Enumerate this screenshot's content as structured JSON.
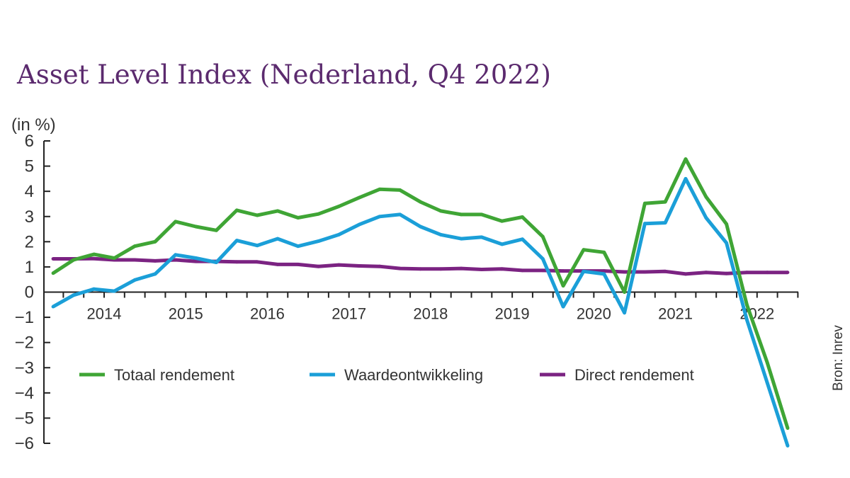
{
  "chart_data": {
    "type": "line",
    "title": "Asset Level Index (Nederland, Q4 2022)",
    "ylabel": "(in %)",
    "source": "Bron: Inrev",
    "ylim": [
      -6,
      6
    ],
    "yticks": [
      6,
      5,
      4,
      3,
      2,
      1,
      0,
      -1,
      -2,
      -3,
      -4,
      -5,
      -6
    ],
    "ytick_labels": [
      "6",
      "5",
      "4",
      "3",
      "2",
      "1",
      "0",
      "−1",
      "−2",
      "−3",
      "−4",
      "−5",
      "−6"
    ],
    "year_labels": [
      "2014",
      "2015",
      "2016",
      "2017",
      "2018",
      "2019",
      "2020",
      "2021",
      "2022"
    ],
    "x": [
      "Q4 2013",
      "Q1 2014",
      "Q2 2014",
      "Q3 2014",
      "Q4 2014",
      "Q1 2015",
      "Q2 2015",
      "Q3 2015",
      "Q4 2015",
      "Q1 2016",
      "Q2 2016",
      "Q3 2016",
      "Q4 2016",
      "Q1 2017",
      "Q2 2017",
      "Q3 2017",
      "Q4 2017",
      "Q1 2018",
      "Q2 2018",
      "Q3 2018",
      "Q4 2018",
      "Q1 2019",
      "Q2 2019",
      "Q3 2019",
      "Q4 2019",
      "Q1 2020",
      "Q2 2020",
      "Q3 2020",
      "Q4 2020",
      "Q1 2021",
      "Q2 2021",
      "Q3 2021",
      "Q4 2021",
      "Q1 2022",
      "Q2 2022",
      "Q3 2022",
      "Q4 2022"
    ],
    "series": [
      {
        "name": "Totaal rendement",
        "color": "#3fa535",
        "values": [
          0.75,
          1.28,
          1.5,
          1.35,
          1.82,
          2.0,
          2.8,
          2.6,
          2.45,
          3.25,
          3.05,
          3.22,
          2.95,
          3.1,
          3.4,
          3.75,
          4.08,
          4.05,
          3.58,
          3.22,
          3.08,
          3.08,
          2.82,
          2.98,
          2.2,
          0.25,
          1.68,
          1.58,
          0.0,
          3.52,
          3.58,
          5.28,
          3.78,
          2.7,
          -0.5,
          -2.8,
          -5.4
        ]
      },
      {
        "name": "Waardeontwikkeling",
        "color": "#1b9fd8",
        "values": [
          -0.58,
          -0.12,
          0.12,
          0.04,
          0.48,
          0.72,
          1.48,
          1.35,
          1.18,
          2.05,
          1.85,
          2.12,
          1.82,
          2.02,
          2.28,
          2.68,
          3.0,
          3.08,
          2.6,
          2.28,
          2.12,
          2.18,
          1.9,
          2.1,
          1.32,
          -0.58,
          0.82,
          0.72,
          -0.82,
          2.72,
          2.75,
          4.5,
          2.95,
          1.95,
          -1.1,
          -3.6,
          -6.1
        ]
      },
      {
        "name": "Direct rendement",
        "color": "#7b2382",
        "values": [
          1.32,
          1.32,
          1.33,
          1.28,
          1.28,
          1.24,
          1.28,
          1.22,
          1.22,
          1.2,
          1.2,
          1.1,
          1.1,
          1.02,
          1.08,
          1.04,
          1.02,
          0.94,
          0.92,
          0.92,
          0.94,
          0.9,
          0.92,
          0.86,
          0.86,
          0.84,
          0.84,
          0.84,
          0.8,
          0.8,
          0.82,
          0.72,
          0.78,
          0.74,
          0.78,
          0.78,
          0.78
        ]
      }
    ]
  }
}
